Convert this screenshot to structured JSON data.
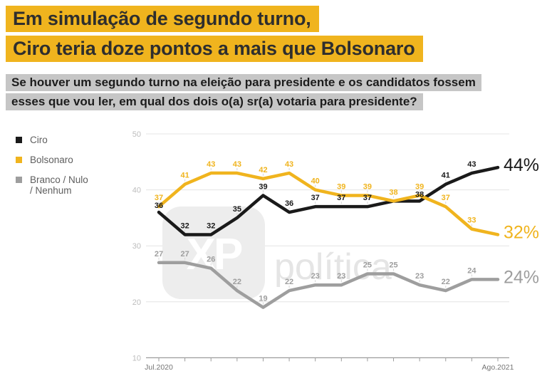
{
  "title": {
    "line1": "Em simulação de segundo turno,",
    "line2": "Ciro teria doze pontos a mais que Bolsonaro"
  },
  "subtitle": {
    "line1": "Se houver um segundo turno na eleição para presidente e os candidatos fossem",
    "line2": "esses que vou ler, em qual dos dois o(a) sr(a) votaria para presidente?"
  },
  "legend": {
    "items": [
      {
        "label": "Ciro",
        "color": "#1A1A1A"
      },
      {
        "label": "Bolsonaro",
        "color": "#F0B41E"
      },
      {
        "label": "Branco / Nulo",
        "label2": "/ Nenhum",
        "color": "#9E9E9E"
      }
    ]
  },
  "watermark": {
    "logo_text": "XP",
    "brand_text": "política"
  },
  "colors": {
    "accent_yellow": "#F0B41E",
    "ink": "#1A1A1A",
    "line_gray": "#9E9E9E",
    "grid": "#E4E4E4",
    "axis": "#9B9B9B",
    "tick_label": "#BDBDBD",
    "date_label": "#757575",
    "leader": "#D5D5D5",
    "watermark_box": "#EDEDED",
    "watermark_text": "#E5E5E5"
  },
  "chart_data": {
    "type": "line",
    "title": "Em simulação de segundo turno, Ciro teria doze pontos a mais que Bolsonaro",
    "x_axis": {
      "start_label": "Jul.2020",
      "end_label": "Ago.2021",
      "num_points": 14
    },
    "y_axis": {
      "ticks": [
        50,
        40,
        30,
        20,
        10
      ],
      "range": [
        10,
        50
      ]
    },
    "grid": true,
    "legend_position": "left",
    "series": [
      {
        "name": "Ciro",
        "color": "#1A1A1A",
        "values": [
          36,
          32,
          32,
          35,
          39,
          36,
          37,
          37,
          37,
          38,
          38,
          41,
          43,
          44
        ],
        "point_labels": [
          "36",
          "32",
          "32",
          "35",
          "39",
          "36",
          "37",
          "37",
          "37",
          "",
          "38",
          "41",
          "43",
          ""
        ],
        "end_label": "44%"
      },
      {
        "name": "Bolsonaro",
        "color": "#F0B41E",
        "values": [
          37,
          41,
          43,
          43,
          42,
          43,
          40,
          39,
          39,
          38,
          39,
          37,
          33,
          32
        ],
        "point_labels": [
          "37",
          "41",
          "43",
          "43",
          "42",
          "43",
          "40",
          "39",
          "39",
          "38",
          "39",
          "37",
          "33",
          ""
        ],
        "end_label": "32%"
      },
      {
        "name": "Branco / Nulo / Nenhum",
        "color": "#9E9E9E",
        "values": [
          27,
          27,
          26,
          22,
          19,
          22,
          23,
          23,
          25,
          25,
          23,
          22,
          24,
          24
        ],
        "point_labels": [
          "27",
          "27",
          "26",
          "22",
          "19",
          "22",
          "23",
          "23",
          "25",
          "25",
          "23",
          "22",
          "24",
          ""
        ],
        "end_label": "24%"
      }
    ]
  }
}
